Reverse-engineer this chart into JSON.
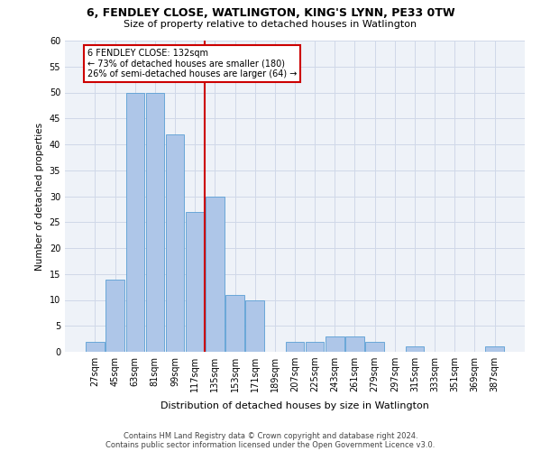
{
  "title1": "6, FENDLEY CLOSE, WATLINGTON, KING'S LYNN, PE33 0TW",
  "title2": "Size of property relative to detached houses in Watlington",
  "xlabel": "Distribution of detached houses by size in Watlington",
  "ylabel": "Number of detached properties",
  "bar_labels": [
    "27sqm",
    "45sqm",
    "63sqm",
    "81sqm",
    "99sqm",
    "117sqm",
    "135sqm",
    "153sqm",
    "171sqm",
    "189sqm",
    "207sqm",
    "225sqm",
    "243sqm",
    "261sqm",
    "279sqm",
    "297sqm",
    "315sqm",
    "333sqm",
    "351sqm",
    "369sqm",
    "387sqm"
  ],
  "bar_values": [
    2,
    14,
    50,
    50,
    42,
    27,
    30,
    11,
    10,
    0,
    2,
    2,
    3,
    3,
    2,
    0,
    1,
    0,
    0,
    0,
    1
  ],
  "bar_color": "#aec6e8",
  "bar_edge_color": "#5a9fd4",
  "vline_index": 6,
  "vline_color": "#cc0000",
  "annotation_box_text": "6 FENDLEY CLOSE: 132sqm\n← 73% of detached houses are smaller (180)\n26% of semi-detached houses are larger (64) →",
  "annotation_box_color": "#cc0000",
  "footnote1": "Contains HM Land Registry data © Crown copyright and database right 2024.",
  "footnote2": "Contains public sector information licensed under the Open Government Licence v3.0.",
  "ylim": [
    0,
    60
  ],
  "yticks": [
    0,
    5,
    10,
    15,
    20,
    25,
    30,
    35,
    40,
    45,
    50,
    55,
    60
  ],
  "grid_color": "#d0d8e8",
  "bg_color": "#eef2f8"
}
